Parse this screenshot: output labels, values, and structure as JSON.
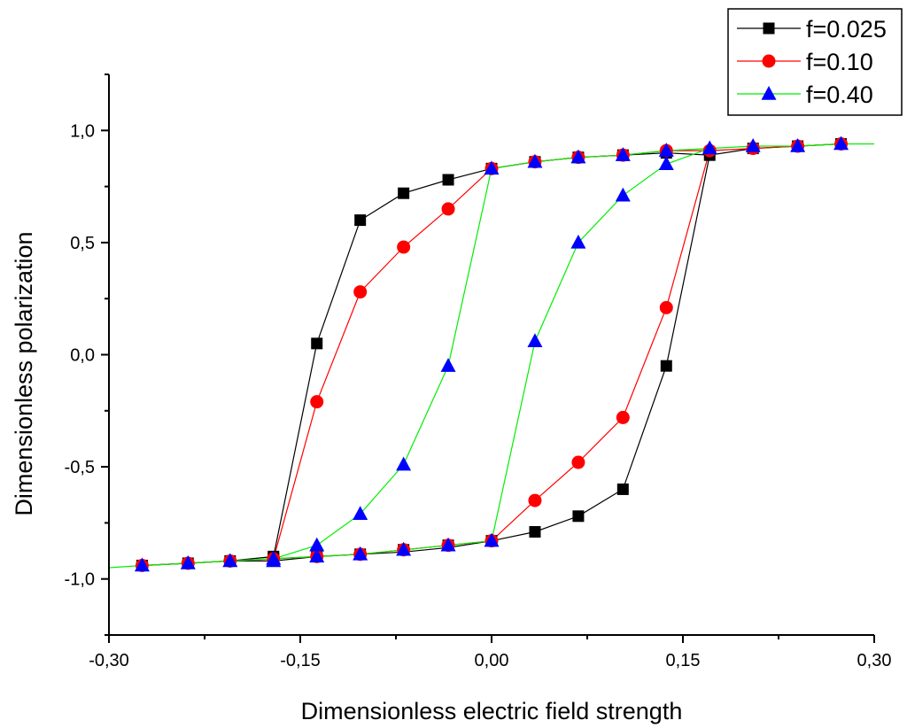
{
  "chart_data": {
    "type": "line",
    "xlabel": "Dimensionless electric field strength",
    "ylabel": "Dimensionless polarization",
    "xlim": [
      -0.3,
      0.3
    ],
    "ylim": [
      -1.25,
      1.25
    ],
    "x_ticks": [
      -0.3,
      -0.15,
      0.0,
      0.15,
      0.3
    ],
    "x_tick_labels": [
      "-0,30",
      "-0,15",
      "0,00",
      "0,15",
      "0,30"
    ],
    "y_ticks": [
      -1.0,
      -0.5,
      0.0,
      0.5,
      1.0
    ],
    "y_tick_labels": [
      "-1,0",
      "-0,5",
      "0,0",
      "0,5",
      "1,0"
    ],
    "grid": false,
    "legend_position": "top-right",
    "series": [
      {
        "name": "f=0.025",
        "color": "#000000",
        "marker": "square",
        "x": [
          -0.274,
          -0.238,
          -0.205,
          -0.171,
          -0.137,
          -0.103,
          -0.069,
          -0.034,
          0.0,
          0.034,
          0.068,
          0.103,
          0.137,
          0.171,
          0.205,
          0.24,
          0.274,
          0.274,
          0.24,
          0.205,
          0.171,
          0.137,
          0.103,
          0.068,
          0.034,
          0.0,
          -0.034,
          -0.069,
          -0.103,
          -0.137,
          -0.171,
          -0.205,
          -0.238,
          -0.274
        ],
        "y": [
          -0.94,
          -0.93,
          -0.92,
          -0.9,
          0.05,
          0.6,
          0.72,
          0.78,
          0.83,
          0.86,
          0.88,
          0.89,
          0.9,
          0.89,
          0.92,
          0.93,
          0.94,
          0.94,
          0.93,
          0.92,
          0.89,
          -0.05,
          -0.6,
          -0.72,
          -0.79,
          -0.83,
          -0.86,
          -0.88,
          -0.89,
          -0.9,
          -0.92,
          -0.92,
          -0.93,
          -0.94
        ],
        "marker_x": [
          -0.274,
          -0.238,
          -0.205,
          -0.171,
          -0.137,
          -0.103,
          -0.069,
          -0.034,
          0.0,
          0.034,
          0.068,
          0.103,
          0.137,
          0.171,
          0.205,
          0.24,
          0.274,
          0.137,
          0.103,
          0.068,
          0.034,
          0.0,
          -0.034,
          -0.069,
          -0.103,
          -0.137,
          -0.171
        ],
        "marker_y": [
          -0.94,
          -0.93,
          -0.92,
          -0.9,
          0.05,
          0.6,
          0.72,
          0.78,
          0.83,
          0.86,
          0.88,
          0.89,
          0.9,
          0.89,
          0.92,
          0.93,
          0.94,
          -0.05,
          -0.6,
          -0.72,
          -0.79,
          -0.83,
          -0.85,
          -0.87,
          -0.89,
          -0.9,
          -0.91
        ]
      },
      {
        "name": "f=0.10",
        "color": "#ff0000",
        "marker": "circle",
        "x": [
          -0.274,
          -0.238,
          -0.205,
          -0.171,
          -0.137,
          -0.103,
          -0.069,
          -0.034,
          0.0,
          0.034,
          0.068,
          0.103,
          0.137,
          0.171,
          0.205,
          0.24,
          0.274,
          0.274,
          0.24,
          0.205,
          0.171,
          0.137,
          0.103,
          0.068,
          0.034,
          0.0,
          -0.034,
          -0.069,
          -0.103,
          -0.137,
          -0.171,
          -0.205,
          -0.238,
          -0.274
        ],
        "y": [
          -0.94,
          -0.93,
          -0.92,
          -0.91,
          -0.21,
          0.28,
          0.48,
          0.65,
          0.83,
          0.86,
          0.88,
          0.89,
          0.91,
          0.91,
          0.92,
          0.93,
          0.94,
          0.94,
          0.93,
          0.92,
          0.91,
          0.21,
          -0.28,
          -0.48,
          -0.65,
          -0.83,
          -0.85,
          -0.87,
          -0.89,
          -0.9,
          -0.91,
          -0.92,
          -0.93,
          -0.94
        ],
        "marker_x": [
          -0.274,
          -0.238,
          -0.205,
          -0.137,
          -0.103,
          -0.069,
          -0.034,
          0.0,
          0.034,
          0.068,
          0.103,
          0.137,
          0.171,
          0.205,
          0.24,
          0.274,
          0.137,
          0.103,
          0.068,
          0.034,
          0.0,
          -0.034,
          -0.069,
          -0.103,
          -0.137,
          -0.171
        ],
        "marker_y": [
          -0.94,
          -0.93,
          -0.92,
          -0.21,
          0.28,
          0.48,
          0.65,
          0.83,
          0.86,
          0.88,
          0.89,
          0.91,
          0.91,
          0.92,
          0.93,
          0.94,
          0.21,
          -0.28,
          -0.48,
          -0.65,
          -0.83,
          -0.85,
          -0.87,
          -0.89,
          -0.9,
          -0.91
        ]
      },
      {
        "name": "f=0.40",
        "color": "#00ee00",
        "marker_color": "#0000ff",
        "marker": "triangle",
        "x": [
          -0.3,
          -0.274,
          -0.238,
          -0.205,
          -0.171,
          -0.137,
          -0.103,
          -0.069,
          -0.034,
          0.0,
          0.034,
          0.068,
          0.103,
          0.137,
          0.171,
          0.205,
          0.24,
          0.274,
          0.3,
          0.3,
          0.274,
          0.24,
          0.205,
          0.171,
          0.137,
          0.103,
          0.068,
          0.034,
          0.0,
          -0.034,
          -0.069,
          -0.103,
          -0.137,
          -0.171,
          -0.205,
          -0.238,
          -0.274,
          -0.3
        ],
        "y": [
          -0.95,
          -0.94,
          -0.93,
          -0.92,
          -0.91,
          -0.85,
          -0.71,
          -0.49,
          -0.05,
          0.83,
          0.86,
          0.88,
          0.89,
          0.91,
          0.92,
          0.93,
          0.93,
          0.94,
          0.94,
          0.94,
          0.94,
          0.93,
          0.93,
          0.92,
          0.85,
          0.71,
          0.5,
          0.06,
          -0.83,
          -0.85,
          -0.87,
          -0.89,
          -0.9,
          -0.91,
          -0.92,
          -0.93,
          -0.94,
          -0.95
        ],
        "marker_x": [
          -0.274,
          -0.238,
          -0.205,
          -0.171,
          -0.137,
          -0.103,
          -0.069,
          -0.034,
          0.0,
          0.034,
          0.068,
          0.103,
          0.137,
          0.171,
          0.205,
          0.24,
          0.274,
          0.137,
          0.103,
          0.068,
          0.034,
          0.0,
          -0.034,
          -0.069,
          -0.103,
          -0.137,
          -0.171
        ],
        "marker_y": [
          -0.94,
          -0.93,
          -0.92,
          -0.92,
          -0.85,
          -0.71,
          -0.49,
          -0.05,
          0.83,
          0.86,
          0.88,
          0.89,
          0.91,
          0.92,
          0.93,
          0.93,
          0.94,
          0.85,
          0.71,
          0.5,
          0.06,
          -0.83,
          -0.85,
          -0.87,
          -0.89,
          -0.9,
          -0.91
        ]
      }
    ]
  }
}
